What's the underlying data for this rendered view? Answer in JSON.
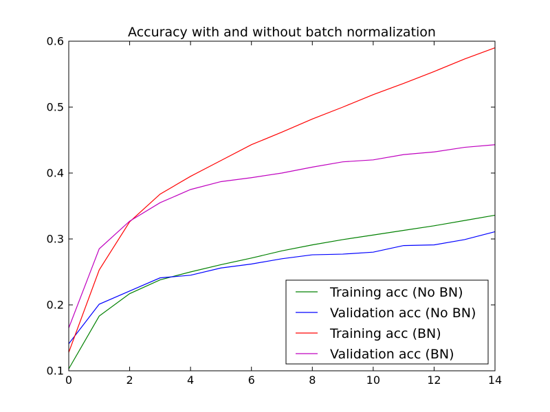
{
  "chart_data": {
    "type": "line",
    "title": "Accuracy with and without batch normalization",
    "xlabel": "",
    "ylabel": "",
    "xlim": [
      0,
      14
    ],
    "ylim": [
      0.1,
      0.6
    ],
    "x_ticks": [
      "0",
      "2",
      "4",
      "6",
      "8",
      "10",
      "12",
      "14"
    ],
    "y_ticks": [
      "0.1",
      "0.2",
      "0.3",
      "0.4",
      "0.5",
      "0.6"
    ],
    "grid": false,
    "legend_position": "lower-right",
    "x": [
      0,
      1,
      2,
      3,
      4,
      5,
      6,
      7,
      8,
      9,
      10,
      11,
      12,
      13,
      14
    ],
    "series": [
      {
        "name": "Training acc (No BN)",
        "color": "#008000",
        "values": [
          0.103,
          0.183,
          0.217,
          0.238,
          0.25,
          0.261,
          0.271,
          0.282,
          0.291,
          0.299,
          0.306,
          0.313,
          0.32,
          0.328,
          0.336
        ]
      },
      {
        "name": "Validation acc (No BN)",
        "color": "#0000ff",
        "values": [
          0.141,
          0.201,
          0.221,
          0.241,
          0.245,
          0.256,
          0.262,
          0.27,
          0.276,
          0.277,
          0.28,
          0.29,
          0.291,
          0.299,
          0.311
        ]
      },
      {
        "name": "Training acc (BN)",
        "color": "#ff0000",
        "values": [
          0.128,
          0.253,
          0.326,
          0.368,
          0.395,
          0.419,
          0.443,
          0.462,
          0.482,
          0.5,
          0.519,
          0.536,
          0.554,
          0.573,
          0.59
        ]
      },
      {
        "name": "Validation acc (BN)",
        "color": "#bf00bf",
        "values": [
          0.165,
          0.285,
          0.327,
          0.355,
          0.375,
          0.387,
          0.393,
          0.4,
          0.409,
          0.417,
          0.42,
          0.428,
          0.432,
          0.439,
          0.443
        ]
      }
    ]
  }
}
